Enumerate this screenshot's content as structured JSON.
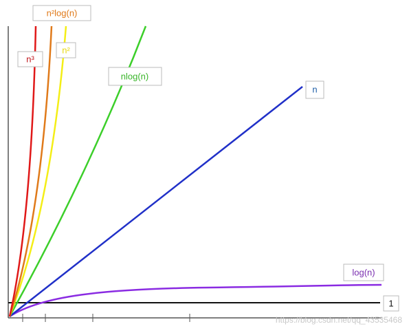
{
  "curves": [
    {
      "label": "n³"
    },
    {
      "label": "n²log(n)"
    },
    {
      "label": "n²"
    },
    {
      "label": "nlog(n)"
    },
    {
      "label": "n"
    },
    {
      "label": "log(n)"
    },
    {
      "label": "1"
    }
  ],
  "watermark": "https://blog.csdn.net/qq_43535468"
}
